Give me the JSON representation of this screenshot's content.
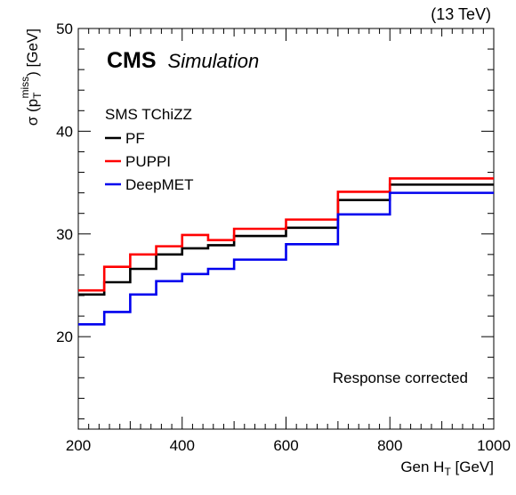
{
  "chart_data": {
    "type": "line",
    "step": true,
    "energy_label": "(13 TeV)",
    "experiment": "CMS",
    "experiment_tag": "Simulation",
    "legend_header": "SMS TChiZZ",
    "note": "Response corrected",
    "xlabel": {
      "main": "Gen H",
      "sub": "T",
      "unit": " [GeV]"
    },
    "ylabel": {
      "sigma": "σ (p",
      "sub": "T",
      "sup": "miss",
      "unit": ") [GeV]"
    },
    "xlim": [
      200,
      1000
    ],
    "ylim": [
      11,
      50
    ],
    "x_ticks": [
      200,
      400,
      600,
      800,
      1000
    ],
    "y_ticks": [
      20,
      30,
      40,
      50
    ],
    "bin_edges": [
      200,
      250,
      300,
      350,
      400,
      450,
      500,
      600,
      700,
      800,
      1000
    ],
    "series": [
      {
        "name": "PF",
        "color": "#000000",
        "values": [
          24.1,
          25.3,
          26.6,
          28.0,
          28.6,
          28.9,
          29.8,
          30.6,
          33.3,
          34.8
        ]
      },
      {
        "name": "PUPPI",
        "color": "#ff0000",
        "values": [
          24.5,
          26.8,
          28.0,
          28.8,
          29.9,
          29.4,
          30.5,
          31.4,
          34.1,
          35.4
        ]
      },
      {
        "name": "DeepMET",
        "color": "#0000ee",
        "values": [
          21.2,
          22.4,
          24.1,
          25.4,
          26.1,
          26.6,
          27.5,
          29.0,
          31.9,
          34.0
        ]
      }
    ]
  }
}
